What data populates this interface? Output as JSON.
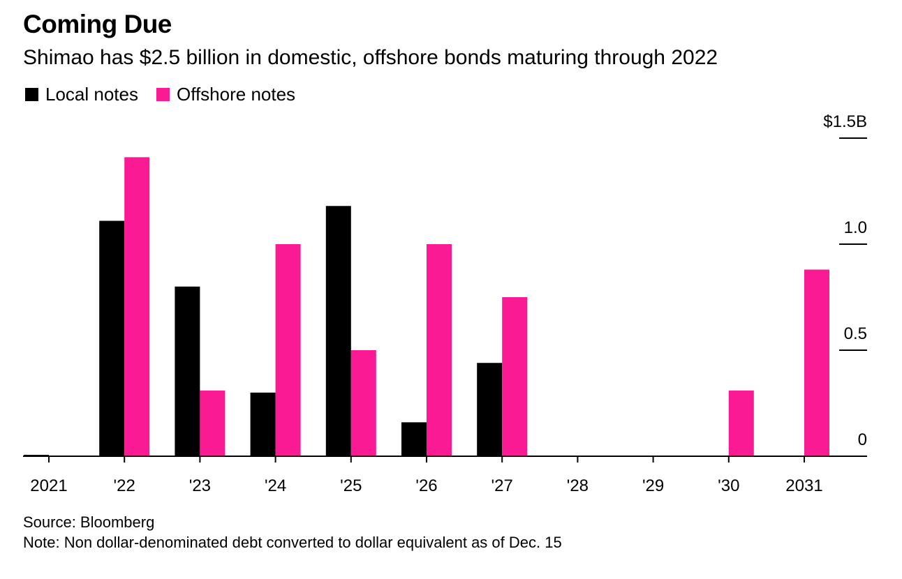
{
  "title": "Coming Due",
  "subtitle": "Shimao has $2.5 billion in domestic, offshore bonds maturing through 2022",
  "source": "Source: Bloomberg",
  "note": "Note: Non dollar-denominated debt converted to dollar equivalent as of Dec. 15",
  "colors": {
    "local": "#000000",
    "offshore": "#fa1a94"
  },
  "chart_data": {
    "type": "bar",
    "categories": [
      "2021",
      "'22",
      "'23",
      "'24",
      "'25",
      "'26",
      "'27",
      "'28",
      "'29",
      "'30",
      "2031"
    ],
    "series": [
      {
        "name": "Local notes",
        "values": [
          0.005,
          1.11,
          0.8,
          0.3,
          1.18,
          0.16,
          0.44,
          0,
          0,
          0,
          0
        ]
      },
      {
        "name": "Offshore notes",
        "values": [
          0,
          1.41,
          0.31,
          1.0,
          0.5,
          1.0,
          0.75,
          0,
          0,
          0.31,
          0.88
        ]
      }
    ],
    "ylim": [
      0,
      1.5
    ],
    "yticks": [
      {
        "value": 1.5,
        "label": "$1.5B"
      },
      {
        "value": 1.0,
        "label": "1.0"
      },
      {
        "value": 0.5,
        "label": "0.5"
      },
      {
        "value": 0,
        "label": "0"
      }
    ],
    "legend_position": "top-left",
    "grid": false
  }
}
